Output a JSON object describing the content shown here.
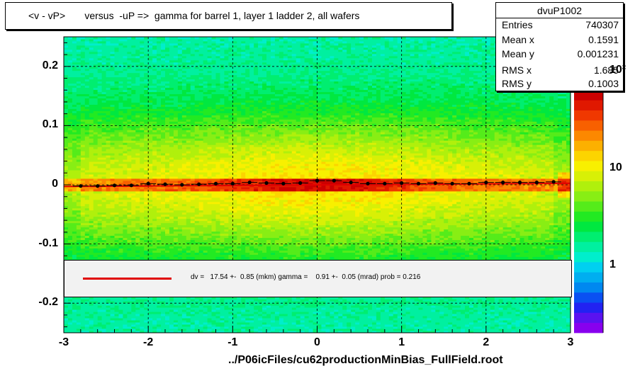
{
  "title": "<v - vP>       versus  -uP =>  gamma for barrel 1, layer 1 ladder 2, all wafers",
  "stats": {
    "name": "dvuP1002",
    "rows": [
      {
        "label": "Entries",
        "value": "740307"
      },
      {
        "label": "Mean x",
        "value": "0.1591"
      },
      {
        "label": "Mean y",
        "value": "0.001231"
      },
      {
        "label": "RMS x",
        "value": "1.685"
      },
      {
        "label": "RMS y",
        "value": "0.1003"
      }
    ]
  },
  "fit_text": "dv =   17.54 +-  0.85 (mkm) gamma =    0.91 +-  0.05 (mrad) prob = 0.216",
  "footer": "../P06icFiles/cu62productionMinBias_FullField.root",
  "colors": {
    "fit_line": "#e00000",
    "profile_points": "#000000",
    "frame": "#000000"
  },
  "chart_data": {
    "type": "heatmap",
    "xlim": [
      -3,
      3
    ],
    "ylim": [
      -0.25,
      0.25
    ],
    "x_ticks": [
      "-3",
      "-2",
      "-1",
      "0",
      "1",
      "2",
      "3"
    ],
    "y_ticks": [
      "-0.2",
      "-0.1",
      "0",
      "0.1",
      "0.2"
    ],
    "z_scale": "log",
    "z_ticks": [
      "1",
      "10",
      "10²"
    ],
    "grid": true,
    "profile": {
      "x": [
        -2.8,
        -2.6,
        -2.4,
        -2.2,
        -2.0,
        -1.8,
        -1.6,
        -1.4,
        -1.2,
        -1.0,
        -0.8,
        -0.6,
        -0.4,
        -0.2,
        0.0,
        0.2,
        0.4,
        0.6,
        0.8,
        1.0,
        1.2,
        1.4,
        1.6,
        1.8,
        2.0,
        2.2,
        2.4,
        2.6,
        2.8
      ],
      "y": [
        -0.002,
        -0.002,
        -0.001,
        -0.001,
        0.002,
        0.001,
        0.0,
        0.001,
        0.002,
        0.002,
        0.004,
        0.003,
        0.002,
        0.003,
        0.007,
        0.007,
        0.004,
        0.002,
        0.002,
        0.003,
        0.002,
        0.003,
        0.002,
        0.002,
        0.004,
        0.004,
        0.004,
        0.004,
        0.005
      ]
    },
    "fit": {
      "x": [
        -3,
        3
      ],
      "y": [
        -0.0029,
        0.0025
      ]
    }
  }
}
